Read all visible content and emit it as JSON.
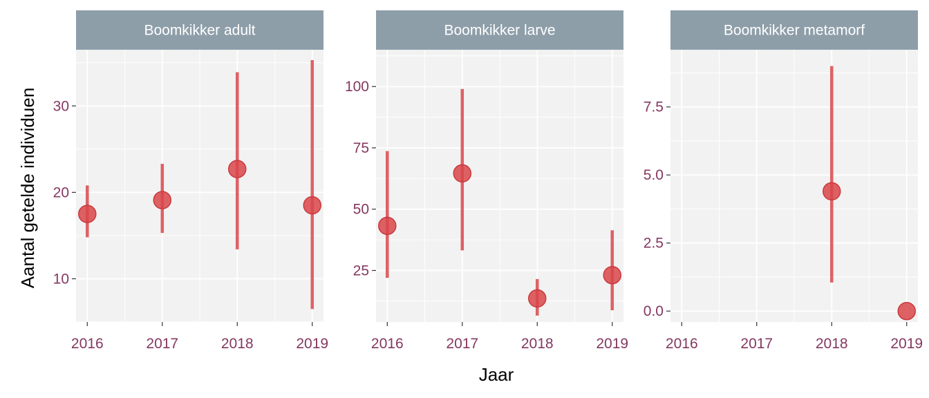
{
  "chart_data": {
    "type": "scatter",
    "subtype": "point-range",
    "xlabel": "Jaar",
    "ylabel": "Aantal getelde individuen",
    "x_ticks": [
      "2016",
      "2017",
      "2018",
      "2019"
    ],
    "colors": {
      "panel_bg": "#f2f2f2",
      "strip_bg": "#8e9ea9",
      "grid": "#ffffff",
      "point": "#d9474a",
      "tick_label": "#843861"
    },
    "facets": [
      {
        "title": "Boomkikker adult",
        "ylim": [
          5,
          36.5
        ],
        "y_ticks": [
          10,
          20,
          30
        ],
        "y_tick_labels": [
          "10",
          "20",
          "30"
        ],
        "points": [
          {
            "x": 2016,
            "y": 17.5,
            "lower": 14.8,
            "upper": 20.8
          },
          {
            "x": 2017,
            "y": 19.1,
            "lower": 15.3,
            "upper": 23.3
          },
          {
            "x": 2018,
            "y": 22.7,
            "lower": 13.4,
            "upper": 33.9
          },
          {
            "x": 2019,
            "y": 18.5,
            "lower": 6.5,
            "upper": 35.3
          }
        ]
      },
      {
        "title": "Boomkikker larve",
        "ylim": [
          4,
          115
        ],
        "y_ticks": [
          25,
          50,
          75,
          100
        ],
        "y_tick_labels": [
          "25",
          "50",
          "75",
          "100"
        ],
        "points": [
          {
            "x": 2016,
            "y": 43.2,
            "lower": 22,
            "upper": 73.7
          },
          {
            "x": 2017,
            "y": 64.6,
            "lower": 33.2,
            "upper": 99
          },
          {
            "x": 2018,
            "y": 13.6,
            "lower": 6.6,
            "upper": 21.5
          },
          {
            "x": 2019,
            "y": 23.1,
            "lower": 8.8,
            "upper": 41.4
          }
        ]
      },
      {
        "title": "Boomkikker metamorf",
        "ylim": [
          -0.4,
          9.6
        ],
        "y_ticks": [
          0,
          2.5,
          5,
          7.5
        ],
        "y_tick_labels": [
          "0.0",
          "2.5",
          "5.0",
          "7.5"
        ],
        "points": [
          {
            "x": 2018,
            "y": 4.4,
            "lower": 1.05,
            "upper": 9.0
          },
          {
            "x": 2019,
            "y": 0,
            "lower": 0,
            "upper": 0
          }
        ]
      }
    ]
  }
}
